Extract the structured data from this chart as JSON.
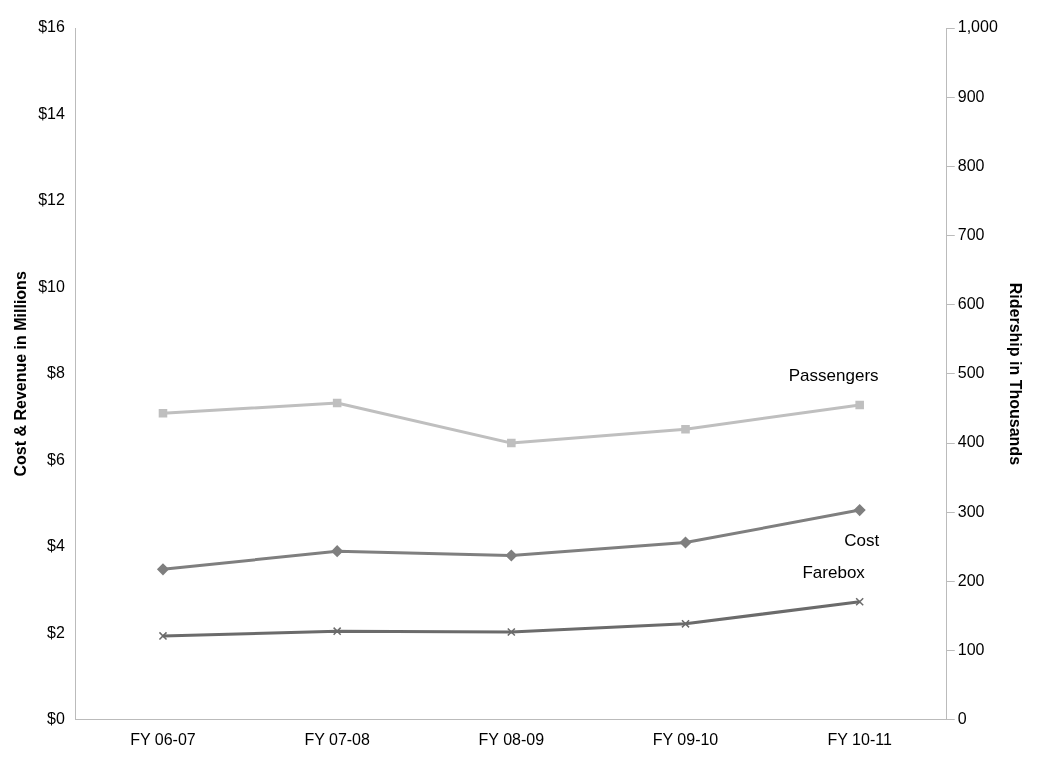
{
  "chart_data": {
    "type": "line",
    "ylabel": "Cost & Revenue in Millions",
    "y2label": "Ridership in Thousands",
    "categories": [
      "FY 06-07",
      "FY 07-08",
      "FY 08-09",
      "FY 09-10",
      "FY 10-11"
    ],
    "ylim": [
      0,
      16
    ],
    "yticks": [
      {
        "value": 0,
        "label": "$0"
      },
      {
        "value": 2,
        "label": "$2"
      },
      {
        "value": 4,
        "label": "$4"
      },
      {
        "value": 6,
        "label": "$6"
      },
      {
        "value": 8,
        "label": "$8"
      },
      {
        "value": 10,
        "label": "$10"
      },
      {
        "value": 12,
        "label": "$12"
      },
      {
        "value": 14,
        "label": "$14"
      },
      {
        "value": 16,
        "label": "$16"
      }
    ],
    "y2lim": [
      0,
      1000
    ],
    "y2ticks": [
      0,
      100,
      200,
      300,
      400,
      500,
      600,
      700,
      800,
      900,
      {
        "value": 1000,
        "label": "1,000"
      }
    ],
    "series": [
      {
        "name": "Passengers",
        "color": "#bfbfbf",
        "axis": "y2",
        "marker": "square",
        "values": [
          443,
          458,
          400,
          420,
          455
        ]
      },
      {
        "name": "Cost",
        "color": "#7f7f7f",
        "marker": "diamond",
        "values": [
          3.48,
          3.9,
          3.8,
          4.1,
          4.85
        ]
      },
      {
        "name": "Farebox",
        "color": "#6b6b6b",
        "marker": "cross",
        "values": [
          1.94,
          2.05,
          2.03,
          2.22,
          2.73
        ]
      }
    ],
    "legend": false,
    "grid": false
  }
}
